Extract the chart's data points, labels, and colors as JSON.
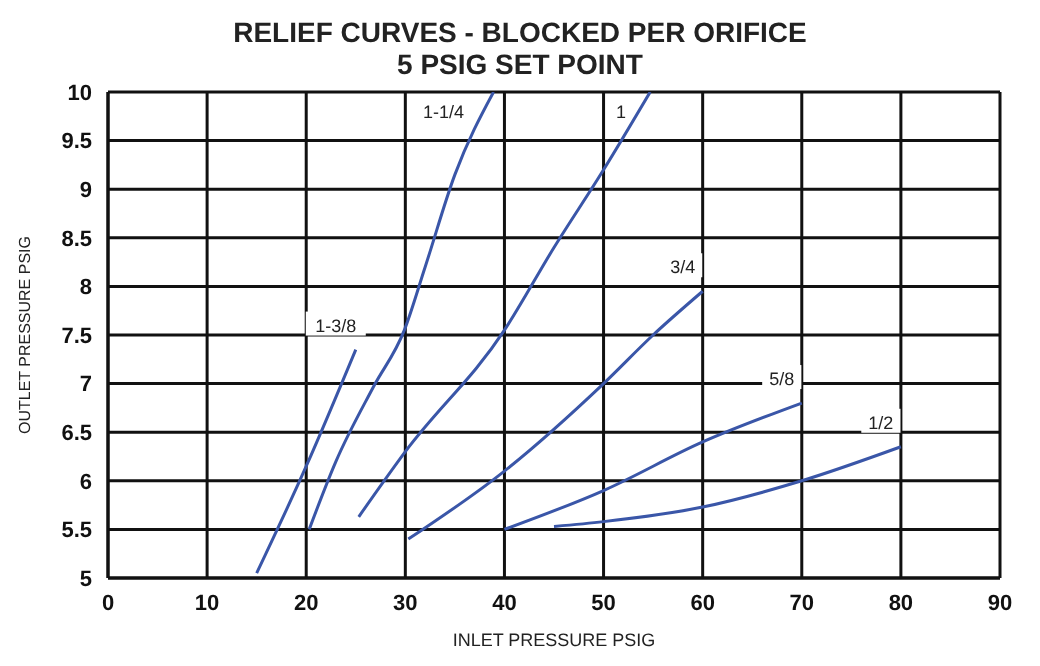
{
  "chart_data": {
    "type": "line",
    "title": "RELIEF CURVES - BLOCKED PER ORIFICE",
    "subtitle": "5 PSIG SET POINT",
    "xlabel": "INLET  PRESSURE PSIG",
    "ylabel": "OUTLET PRESSURE PSIG",
    "xlim": [
      0,
      90
    ],
    "xticks": [
      0,
      10,
      20,
      30,
      40,
      50,
      60,
      70,
      80,
      90
    ],
    "ylim": [
      5,
      10
    ],
    "yticks": [
      5,
      5.5,
      6,
      6.5,
      7,
      7.5,
      8,
      8.5,
      9,
      9.5,
      10
    ],
    "grid": true,
    "legend": false,
    "marker": "none",
    "line_style": "solid",
    "series": [
      {
        "name": "1-3/8",
        "color": "#3a56a8",
        "x": [
          15,
          20,
          25
        ],
        "values": [
          5.05,
          6.15,
          7.35
        ]
      },
      {
        "name": "1-1/4",
        "color": "#3a56a8",
        "x": [
          20.3,
          23,
          26.8,
          29.9,
          32,
          35,
          38.9
        ],
        "values": [
          5.5,
          6.2,
          6.97,
          7.55,
          8.2,
          9.15,
          10
        ]
      },
      {
        "name": "1",
        "color": "#3a56a8",
        "x": [
          25.3,
          30,
          40,
          45,
          50,
          54.7
        ],
        "values": [
          5.63,
          6.3,
          7.55,
          8.4,
          9.2,
          10
        ]
      },
      {
        "name": "3/4",
        "color": "#3a56a8",
        "x": [
          30.3,
          40,
          50,
          55,
          60
        ],
        "values": [
          5.4,
          6.1,
          7.0,
          7.5,
          7.95
        ]
      },
      {
        "name": "5/8",
        "color": "#3a56a8",
        "x": [
          40,
          50,
          60,
          70
        ],
        "values": [
          5.5,
          5.9,
          6.4,
          6.8
        ]
      },
      {
        "name": "1/2",
        "color": "#3a56a8",
        "x": [
          45,
          50,
          60,
          70,
          80
        ],
        "values": [
          5.53,
          5.58,
          5.73,
          6.0,
          6.35
        ]
      }
    ]
  }
}
